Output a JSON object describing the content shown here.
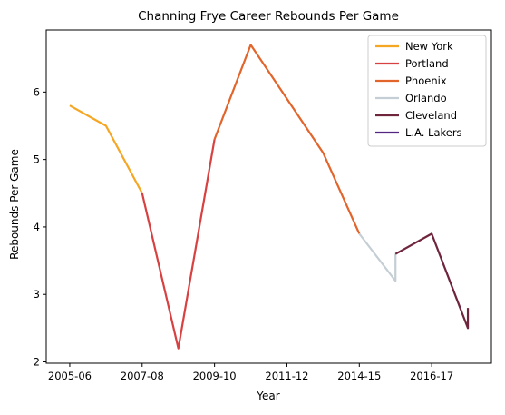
{
  "chart_data": {
    "type": "line",
    "title": "Channing Frye Career Rebounds Per Game",
    "xlabel": "Year",
    "ylabel": "Rebounds Per Game",
    "x_ticks": [
      {
        "position": 0,
        "label": "2005-06"
      },
      {
        "position": 2,
        "label": "2007-08"
      },
      {
        "position": 4,
        "label": "2009-10"
      },
      {
        "position": 6,
        "label": "2011-12"
      },
      {
        "position": 8,
        "label": "2014-15"
      },
      {
        "position": 10,
        "label": "2016-17"
      }
    ],
    "y_ticks": [
      2,
      3,
      4,
      5,
      6
    ],
    "xlim": [
      -0.65,
      11.65
    ],
    "ylim": [
      1.98,
      6.92
    ],
    "grid": false,
    "legend_position": "top-right",
    "series": [
      {
        "name": "New York",
        "color": "#F5A623",
        "points": [
          {
            "x": 0,
            "y": 5.8
          },
          {
            "x": 1,
            "y": 5.5
          },
          {
            "x": 2,
            "y": 4.5
          }
        ]
      },
      {
        "name": "Portland",
        "color": "#D84141",
        "points": [
          {
            "x": 2,
            "y": 4.5
          },
          {
            "x": 3,
            "y": 2.2
          },
          {
            "x": 4,
            "y": 5.3
          }
        ]
      },
      {
        "name": "Phoenix",
        "color": "#E2652B",
        "points": [
          {
            "x": 4,
            "y": 5.3
          },
          {
            "x": 5,
            "y": 6.7
          },
          {
            "x": 7,
            "y": 5.1
          },
          {
            "x": 8,
            "y": 3.9
          }
        ]
      },
      {
        "name": "Orlando",
        "color": "#C4CED4",
        "points": [
          {
            "x": 8,
            "y": 3.9
          },
          {
            "x": 9,
            "y": 3.2
          },
          {
            "x": 9,
            "y": 3.6
          }
        ]
      },
      {
        "name": "Cleveland",
        "color": "#6F263D",
        "points": [
          {
            "x": 9,
            "y": 3.6
          },
          {
            "x": 10,
            "y": 3.9
          },
          {
            "x": 11,
            "y": 2.5
          },
          {
            "x": 11,
            "y": 2.8
          }
        ]
      },
      {
        "name": "L.A. Lakers",
        "color": "#552583",
        "points": []
      }
    ]
  }
}
